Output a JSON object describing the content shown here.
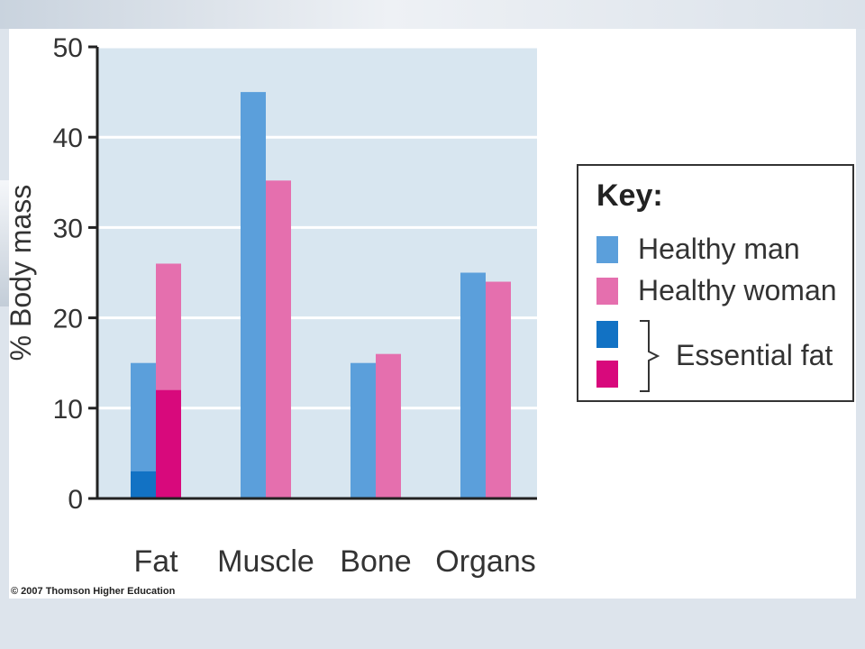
{
  "chart_data": {
    "type": "bar",
    "ylabel": "% Body mass",
    "ylim": [
      0,
      50
    ],
    "yticks": [
      0,
      10,
      20,
      30,
      40,
      50
    ],
    "grid": true,
    "categories": [
      "Fat",
      "Muscle",
      "Bone",
      "Organs"
    ],
    "series": [
      {
        "name": "Healthy man",
        "values": [
          15,
          45,
          15,
          25
        ]
      },
      {
        "name": "Healthy woman",
        "values": [
          26,
          35.2,
          16,
          24
        ]
      }
    ],
    "essential_fat": {
      "man": 3,
      "woman": 12
    },
    "legend_placement": "right",
    "colors": {
      "man": "#5b9fdb",
      "woman": "#e56fae",
      "man_essential": "#1272c4",
      "woman_essential": "#d8097c",
      "plot_bg": "#d8e6f0",
      "grid": "#ffffff",
      "axis": "#222222"
    }
  },
  "key": {
    "title": "Key:",
    "healthy_man": "Healthy man",
    "healthy_woman": "Healthy woman",
    "essential_fat": "Essential fat"
  },
  "footer": {
    "copyright": "© 2007 Thomson Higher Education"
  }
}
